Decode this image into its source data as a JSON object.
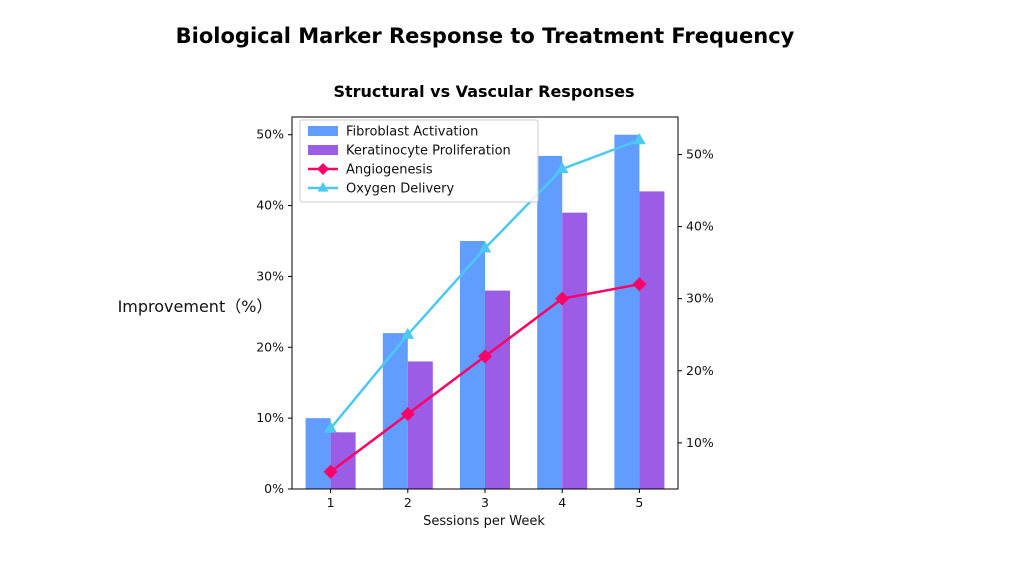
{
  "chart_data": {
    "type": "bar",
    "title": "Biological Marker Response to Treatment Frequency",
    "subtitle": "Structural vs Vascular Responses",
    "xlabel": "Sessions per Week",
    "ylabel": "Improvement（%）",
    "categories": [
      "1",
      "2",
      "3",
      "4",
      "5"
    ],
    "ylim_left": [
      0,
      52.5
    ],
    "yticks_left": [
      "0%",
      "10%",
      "20%",
      "30%",
      "40%",
      "50%"
    ],
    "ylim_right": [
      3.6,
      55.2
    ],
    "yticks_right": [
      "10%",
      "20%",
      "30%",
      "40%",
      "50%"
    ],
    "bar_series": [
      {
        "name": "Fibroblast Activation",
        "color": "#619CFF",
        "values": [
          10,
          22,
          35,
          47,
          50
        ]
      },
      {
        "name": "Keratinocyte Proliferation",
        "color": "#9B5DE5",
        "values": [
          8,
          18,
          28,
          39,
          42
        ]
      }
    ],
    "line_series": [
      {
        "name": "Angiogenesis",
        "color": "#FF0066",
        "marker": "diamond",
        "axis": "right",
        "values": [
          6,
          14,
          22,
          30,
          32
        ]
      },
      {
        "name": "Oxygen Delivery",
        "color": "#4CC9F0",
        "marker": "triangle",
        "axis": "right",
        "values": [
          12,
          25,
          37,
          48,
          52
        ]
      }
    ],
    "legend_position": "upper-left",
    "grid": false
  }
}
